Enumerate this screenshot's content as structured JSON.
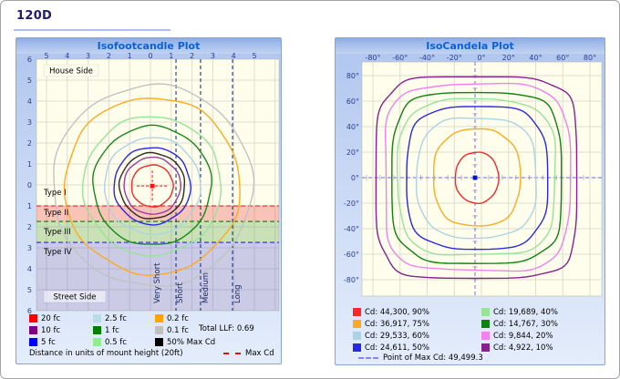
{
  "page": {
    "title": "120D"
  },
  "left_panel": {
    "title": "Isofootcandle Plot",
    "total_llf": "Total LLF: 0.69",
    "footer_note": "Distance in units of mount height (20ft)",
    "max_cd_label": "Max Cd",
    "legend": [
      {
        "color": "#ff0000",
        "label": "20 fc"
      },
      {
        "color": "#800080",
        "label": "10 fc"
      },
      {
        "color": "#0000ff",
        "label": "5 fc"
      },
      {
        "color": "#b8dce8",
        "label": "2.5 fc"
      },
      {
        "color": "#008000",
        "label": "1 fc"
      },
      {
        "color": "#90ee90",
        "label": "0.5 fc"
      },
      {
        "color": "#ffa500",
        "label": "0.2 fc"
      },
      {
        "color": "#c0c0c0",
        "label": "0.1 fc"
      },
      {
        "color": "#000000",
        "label": "50% Max Cd"
      }
    ]
  },
  "right_panel": {
    "title": "IsoCandela Plot",
    "max_cd_note": "Point of Max Cd: 49,499.3"
  },
  "chart_data": [
    {
      "type": "contour",
      "subtype": "isofootcandle",
      "title": "Isofootcandle Plot",
      "units": "distance in mount heights (20ft)",
      "grid": true,
      "xlim": [
        -5.5,
        6.2
      ],
      "ylim": [
        -6,
        6
      ],
      "xticks": {
        "labels": [
          "5",
          "4",
          "3",
          "2",
          "1",
          "0",
          "1",
          "2",
          "3",
          "4",
          "5"
        ],
        "values": [
          -5,
          -4,
          -3,
          -2,
          -1,
          0,
          1,
          2,
          3,
          4,
          5
        ]
      },
      "yticks": {
        "labels": [
          "6",
          "5",
          "4",
          "3",
          "2",
          "1",
          "0",
          "1",
          "2",
          "3",
          "4",
          "5",
          "6"
        ],
        "values": [
          -6,
          -5,
          -4,
          -3,
          -2,
          -1,
          0,
          1,
          2,
          3,
          4,
          5,
          6
        ]
      },
      "house_side_label": "House Side",
      "street_side_label": "Street Side",
      "levels": [
        {
          "label": "20 fc",
          "value_fc": 20,
          "color": "#f82828",
          "radius_mh": 1.0
        },
        {
          "label": "10 fc",
          "value_fc": 10,
          "color": "#a03aa0",
          "radius_mh": 1.36
        },
        {
          "label": "50% Max Cd",
          "color": "#2a2a2a",
          "radius_mh": 1.57
        },
        {
          "label": "5 fc",
          "value_fc": 5,
          "color": "#2828e8",
          "radius_mh": 1.84
        },
        {
          "label": "2.5 fc",
          "value_fc": 2.5,
          "color": "#aad4e4",
          "radius_mh": 2.31
        },
        {
          "label": "1 fc",
          "value_fc": 1,
          "color": "#188818",
          "radius_mh": 2.84
        },
        {
          "label": "0.5 fc",
          "value_fc": 0.5,
          "color": "#96e496",
          "radius_mh": 3.32
        },
        {
          "label": "0.2 fc",
          "value_fc": 0.2,
          "color": "#ffaa1e",
          "radius_mh": 4.22
        },
        {
          "label": "0.1 fc",
          "value_fc": 0.1,
          "color": "#c2c2c2",
          "radius_mh": 4.8
        }
      ],
      "type_zones": {
        "boundaries_mh": [
          1.0,
          1.74,
          2.74
        ],
        "line_colors": [
          "#e01010",
          "#0a7a0a",
          "#2626cc"
        ],
        "band_fills": [
          "rgba(235,60,60,0.30)",
          "rgba(80,160,60,0.30)",
          "rgba(85,85,215,0.30)"
        ],
        "labels": [
          "Type I",
          "Type II",
          "Type III",
          "Type IV"
        ],
        "label_positions_mh": [
          0.48,
          1.43,
          2.35,
          3.3
        ]
      },
      "throw_zones": {
        "boundaries_mh": [
          1.23,
          2.41,
          3.95
        ],
        "labels": [
          "Very Short",
          "Short",
          "Medium",
          "Long"
        ],
        "label_positions_mh": [
          0.44,
          1.54,
          2.76,
          4.3
        ]
      },
      "max_cd_point": {
        "x_mh": 0.09,
        "y_mh": 0.05,
        "marker_color": "#ff1010"
      }
    },
    {
      "type": "contour",
      "subtype": "isocandela",
      "title": "IsoCandela Plot",
      "grid": true,
      "xlim": [
        -88,
        89
      ],
      "ylim": [
        -90,
        91
      ],
      "xticks": {
        "labels": [
          "-80°",
          "-60°",
          "-40°",
          "-20°",
          "0°",
          "20°",
          "40°",
          "60°",
          "80°"
        ],
        "values": [
          -80,
          -60,
          -40,
          -20,
          0,
          20,
          40,
          60,
          80
        ]
      },
      "yticks": {
        "labels": [
          "80°",
          "60°",
          "40°",
          "20°",
          "0°",
          "-20°",
          "-40°",
          "-60°",
          "-80°"
        ],
        "values": [
          80,
          60,
          40,
          20,
          0,
          -20,
          -40,
          -60,
          -80
        ]
      },
      "levels": [
        {
          "label": "Cd: 44,300, 90%",
          "cd": 44300,
          "percent": 90,
          "color": "#f82828",
          "half_width_deg": 16,
          "half_height_deg": 20,
          "squareness": 2.1
        },
        {
          "label": "Cd: 36,917, 75%",
          "cd": 36917,
          "percent": 75,
          "color": "#ffaa1e",
          "half_width_deg": 32,
          "half_height_deg": 38,
          "squareness": 2.5
        },
        {
          "label": "Cd: 29,533, 60%",
          "cd": 29533,
          "percent": 60,
          "color": "#aad4e4",
          "half_width_deg": 44,
          "half_height_deg": 47,
          "squareness": 2.9
        },
        {
          "label": "Cd: 24,611, 50%",
          "cd": 24611,
          "percent": 50,
          "color": "#2828e8",
          "half_width_deg": 52,
          "half_height_deg": 56,
          "squareness": 3.2
        },
        {
          "label": "Cd: 19,689, 40%",
          "cd": 19689,
          "percent": 40,
          "color": "#96e496",
          "half_width_deg": 58,
          "half_height_deg": 61,
          "squareness": 3.5
        },
        {
          "label": "Cd: 14,767, 30%",
          "cd": 14767,
          "percent": 30,
          "color": "#0f820f",
          "half_width_deg": 62.5,
          "half_height_deg": 67,
          "squareness": 3.8
        },
        {
          "label": "Cd: 9,844, 20%",
          "cd": 9844,
          "percent": 20,
          "color": "#ee82ee",
          "half_width_deg": 68,
          "half_height_deg": 73,
          "squareness": 4.2
        },
        {
          "label": "Cd: 4,922, 10%",
          "cd": 4922,
          "percent": 10,
          "color": "#882090",
          "half_width_deg": 74,
          "half_height_deg": 79,
          "squareness": 4.6
        }
      ],
      "max_point": {
        "label": "Point of Max Cd: 49,499.3",
        "cd": 49499.3,
        "x_deg": -4.7,
        "y_deg": 0,
        "crosshair_color": "#8888ee"
      }
    }
  ]
}
